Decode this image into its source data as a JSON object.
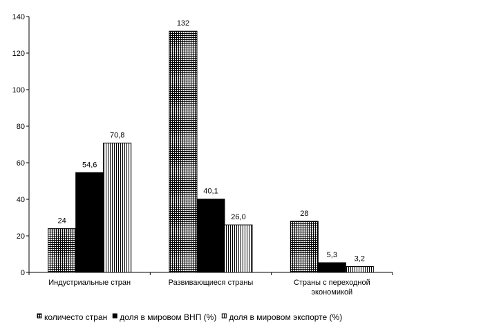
{
  "chart_data": {
    "type": "bar",
    "categories": [
      [
        "Индустриальные стран"
      ],
      [
        "Развивающиеся страны"
      ],
      [
        "Страны с переходной",
        "экономикой"
      ]
    ],
    "series": [
      {
        "name": "количесто стран",
        "values": [
          24,
          132,
          28
        ],
        "labels": [
          "24",
          "132",
          "28"
        ],
        "pattern": "grid"
      },
      {
        "name": "доля в мировом ВНП (%)",
        "values": [
          54.6,
          40.1,
          5.3
        ],
        "labels": [
          "54,6",
          "40,1",
          "5,3"
        ],
        "pattern": "solid"
      },
      {
        "name": "доля в мировом экспорте (%)",
        "values": [
          70.8,
          26.0,
          3.2
        ],
        "labels": [
          "70,8",
          "26,0",
          "3,2"
        ],
        "pattern": "vlines"
      }
    ],
    "yticks": [
      "0",
      "20",
      "40",
      "60",
      "80",
      "100",
      "120",
      "140"
    ],
    "ylim": [
      0,
      140
    ],
    "grid": false,
    "legend_position": "bottom"
  }
}
